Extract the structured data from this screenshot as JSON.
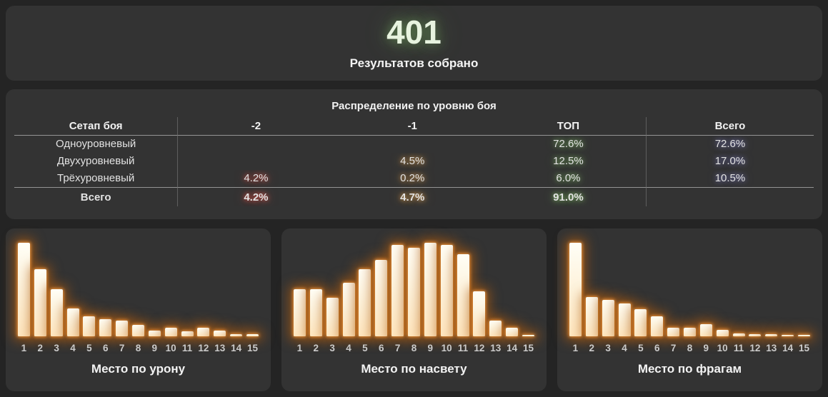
{
  "summary": {
    "count": "401",
    "caption": "Результатов собрано"
  },
  "colors": {
    "background": "#242424",
    "panel": "#333333",
    "count_green": "#e7f3df",
    "glow_green": "#98e476",
    "glow_red": "#ff5c50",
    "glow_orange": "#ffb656",
    "glow_purple": "#9898ff",
    "bar_fill": "#fdf1d8",
    "bar_glow": "#b05c10"
  },
  "chart_data": [
    {
      "type": "bar",
      "title": "Место по урону",
      "categories": [
        "1",
        "2",
        "3",
        "4",
        "5",
        "6",
        "7",
        "8",
        "9",
        "10",
        "11",
        "12",
        "13",
        "14",
        "15"
      ],
      "values": [
        1.0,
        0.72,
        0.5,
        0.3,
        0.21,
        0.18,
        0.17,
        0.12,
        0.06,
        0.09,
        0.05,
        0.09,
        0.06,
        0.02,
        0.02
      ],
      "xlabel": "",
      "ylabel": "",
      "ylim": [
        0,
        1
      ],
      "grid": false,
      "legend": false
    },
    {
      "type": "bar",
      "title": "Место по насвету",
      "categories": [
        "1",
        "2",
        "3",
        "4",
        "5",
        "6",
        "7",
        "8",
        "9",
        "10",
        "11",
        "12",
        "13",
        "14",
        "15"
      ],
      "values": [
        0.5,
        0.5,
        0.41,
        0.57,
        0.72,
        0.82,
        0.98,
        0.95,
        1.0,
        0.98,
        0.88,
        0.48,
        0.17,
        0.09,
        0.01
      ],
      "xlabel": "",
      "ylabel": "",
      "ylim": [
        0,
        1
      ],
      "grid": false,
      "legend": false
    },
    {
      "type": "bar",
      "title": "Место по фрагам",
      "categories": [
        "1",
        "2",
        "3",
        "4",
        "5",
        "6",
        "7",
        "8",
        "9",
        "10",
        "11",
        "12",
        "13",
        "14",
        "15"
      ],
      "values": [
        1.0,
        0.42,
        0.39,
        0.35,
        0.29,
        0.21,
        0.09,
        0.09,
        0.13,
        0.07,
        0.03,
        0.02,
        0.02,
        0.01,
        0.01
      ],
      "xlabel": "",
      "ylabel": "",
      "ylim": [
        0,
        1
      ],
      "grid": false,
      "legend": false
    },
    {
      "type": "table",
      "title": "Распределение по уровню боя",
      "columns": [
        "Сетап боя",
        "-2",
        "-1",
        "ТОП",
        "Всего"
      ],
      "rows": [
        [
          "Одноуровневый",
          "",
          "",
          "72.6%",
          "72.6%"
        ],
        [
          "Двухуровневый",
          "",
          "4.5%",
          "12.5%",
          "17.0%"
        ],
        [
          "Трёхуровневый",
          "4.2%",
          "0.2%",
          "6.0%",
          "10.5%"
        ],
        [
          "Всего",
          "4.2%",
          "4.7%",
          "91.0%",
          ""
        ]
      ]
    }
  ]
}
